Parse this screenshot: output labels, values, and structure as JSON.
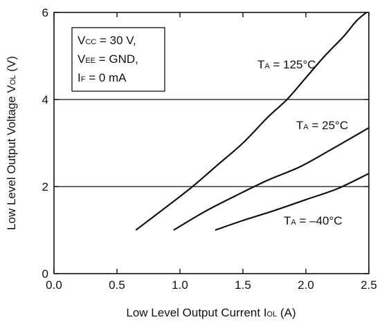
{
  "chart_data": {
    "type": "line",
    "xlabel": {
      "main": "Low Level Output Current  I",
      "sub": "OL",
      "unit": " (A)"
    },
    "ylabel": {
      "main": "Low Level Output Voltage  V",
      "sub": "OL",
      "unit": " (V)"
    },
    "xlim": [
      0.0,
      2.5
    ],
    "ylim": [
      0,
      6
    ],
    "xticks": [
      "0.0",
      "0.5",
      "1.0",
      "1.5",
      "2.0",
      "2.5"
    ],
    "yticks": [
      "0",
      "2",
      "4",
      "6"
    ],
    "xtick_values": [
      0.0,
      0.5,
      1.0,
      1.5,
      2.0,
      2.5
    ],
    "ytick_values": [
      0,
      2,
      4,
      6
    ],
    "gridlines_y": [
      2,
      4
    ],
    "conditions": [
      {
        "pre": "V",
        "sub": "CC",
        "post": " = 30 V,"
      },
      {
        "pre": "V",
        "sub": "EE",
        "post": " = GND,"
      },
      {
        "pre": "I",
        "sub": "F",
        "post": " = 0 mA"
      }
    ],
    "series": [
      {
        "name": "T_A = 125°C",
        "label": {
          "pre": "T",
          "sub": "A",
          "post": " = 125°C"
        },
        "x": [
          0.65,
          0.9,
          1.1,
          1.3,
          1.5,
          1.7,
          1.85,
          2.0,
          2.15,
          2.3,
          2.4,
          2.48
        ],
        "y": [
          1.0,
          1.55,
          2.0,
          2.5,
          3.0,
          3.6,
          4.0,
          4.5,
          5.0,
          5.45,
          5.8,
          6.0
        ]
      },
      {
        "name": "T_A = 25°C",
        "label": {
          "pre": "T",
          "sub": "A",
          "post": " = 25°C"
        },
        "x": [
          0.95,
          1.2,
          1.45,
          1.7,
          1.95,
          2.2,
          2.5
        ],
        "y": [
          1.0,
          1.43,
          1.8,
          2.15,
          2.45,
          2.85,
          3.35
        ]
      },
      {
        "name": "T_A = –40°C",
        "label": {
          "pre": "T",
          "sub": "A",
          "post": " = –40°C"
        },
        "x": [
          1.28,
          1.5,
          1.75,
          2.0,
          2.25,
          2.5
        ],
        "y": [
          1.0,
          1.22,
          1.45,
          1.7,
          1.95,
          2.3
        ]
      }
    ]
  }
}
